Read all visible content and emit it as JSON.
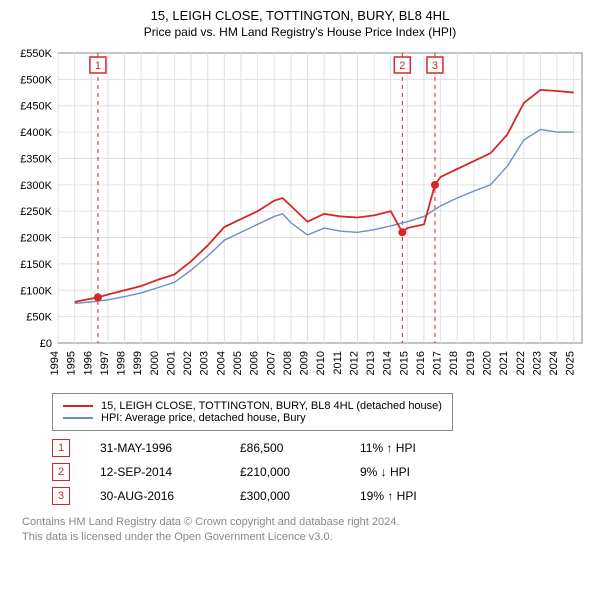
{
  "title": "15, LEIGH CLOSE, TOTTINGTON, BURY, BL8 4HL",
  "subtitle": "Price paid vs. HM Land Registry's House Price Index (HPI)",
  "chart": {
    "type": "line",
    "background_color": "#ffffff",
    "grid_color": "#e0e0e0",
    "marker_border": "#d62728",
    "marker_dash": "4,4",
    "marker_label_fontsize": 11,
    "xlim": [
      1994,
      2025.5
    ],
    "ylim": [
      0,
      550000
    ],
    "xtick_step": 1,
    "ytick_step": 50000,
    "ytick_labels": [
      "£0",
      "£50K",
      "£100K",
      "£150K",
      "£200K",
      "£250K",
      "£300K",
      "£350K",
      "£400K",
      "£450K",
      "£500K",
      "£550K"
    ],
    "xtick_labels": [
      "1994",
      "1995",
      "1996",
      "1997",
      "1998",
      "1999",
      "2000",
      "2001",
      "2002",
      "2003",
      "2004",
      "2005",
      "2006",
      "2007",
      "2008",
      "2009",
      "2010",
      "2011",
      "2012",
      "2013",
      "2014",
      "2015",
      "2016",
      "2017",
      "2018",
      "2019",
      "2020",
      "2021",
      "2022",
      "2023",
      "2024",
      "2025"
    ],
    "axis_fontsize": 11,
    "series": [
      {
        "name": "15, LEIGH CLOSE, TOTTINGTON, BURY, BL8 4HL (detached house)",
        "color": "#d62728",
        "width": 1.8,
        "data": [
          [
            1995,
            78000
          ],
          [
            1996.4,
            86500
          ],
          [
            1997,
            92000
          ],
          [
            1998,
            100000
          ],
          [
            1999,
            108000
          ],
          [
            2000,
            120000
          ],
          [
            2001,
            130000
          ],
          [
            2002,
            155000
          ],
          [
            2003,
            185000
          ],
          [
            2004,
            220000
          ],
          [
            2005,
            235000
          ],
          [
            2006,
            250000
          ],
          [
            2007,
            270000
          ],
          [
            2007.5,
            275000
          ],
          [
            2008,
            260000
          ],
          [
            2009,
            230000
          ],
          [
            2010,
            245000
          ],
          [
            2011,
            240000
          ],
          [
            2012,
            238000
          ],
          [
            2013,
            242000
          ],
          [
            2014,
            250000
          ],
          [
            2014.7,
            210000
          ],
          [
            2015,
            218000
          ],
          [
            2016,
            225000
          ],
          [
            2016.66,
            300000
          ],
          [
            2017,
            315000
          ],
          [
            2018,
            330000
          ],
          [
            2019,
            345000
          ],
          [
            2020,
            360000
          ],
          [
            2021,
            395000
          ],
          [
            2022,
            455000
          ],
          [
            2023,
            480000
          ],
          [
            2024,
            478000
          ],
          [
            2025,
            475000
          ]
        ]
      },
      {
        "name": "HPI: Average price, detached house, Bury",
        "color": "#6b8fc7",
        "width": 1.4,
        "data": [
          [
            1995,
            75000
          ],
          [
            1996,
            78000
          ],
          [
            1997,
            82000
          ],
          [
            1998,
            88000
          ],
          [
            1999,
            95000
          ],
          [
            2000,
            105000
          ],
          [
            2001,
            115000
          ],
          [
            2002,
            138000
          ],
          [
            2003,
            165000
          ],
          [
            2004,
            195000
          ],
          [
            2005,
            210000
          ],
          [
            2006,
            225000
          ],
          [
            2007,
            240000
          ],
          [
            2007.5,
            245000
          ],
          [
            2008,
            228000
          ],
          [
            2009,
            205000
          ],
          [
            2010,
            218000
          ],
          [
            2011,
            212000
          ],
          [
            2012,
            210000
          ],
          [
            2013,
            215000
          ],
          [
            2014,
            222000
          ],
          [
            2015,
            230000
          ],
          [
            2016,
            240000
          ],
          [
            2017,
            260000
          ],
          [
            2018,
            275000
          ],
          [
            2019,
            288000
          ],
          [
            2020,
            300000
          ],
          [
            2021,
            335000
          ],
          [
            2022,
            385000
          ],
          [
            2023,
            405000
          ],
          [
            2024,
            400000
          ],
          [
            2025,
            400000
          ]
        ]
      }
    ],
    "markers": [
      {
        "n": "1",
        "x": 1996.4,
        "y": 86500,
        "color": "#d62728"
      },
      {
        "n": "2",
        "x": 2014.7,
        "y": 210000,
        "color": "#d62728"
      },
      {
        "n": "3",
        "x": 2016.66,
        "y": 300000,
        "color": "#d62728"
      }
    ]
  },
  "legend": {
    "items": [
      {
        "label": "15, LEIGH CLOSE, TOTTINGTON, BURY, BL8 4HL (detached house)",
        "color": "#d62728"
      },
      {
        "label": "HPI: Average price, detached house, Bury",
        "color": "#6b8fc7"
      }
    ]
  },
  "sales": [
    {
      "n": "1",
      "date": "31-MAY-1996",
      "price": "£86,500",
      "pct": "11% ↑ HPI",
      "color": "#d62728"
    },
    {
      "n": "2",
      "date": "12-SEP-2014",
      "price": "£210,000",
      "pct": "9% ↓ HPI",
      "color": "#d62728"
    },
    {
      "n": "3",
      "date": "30-AUG-2016",
      "price": "£300,000",
      "pct": "19% ↑ HPI",
      "color": "#d62728"
    }
  ],
  "footnote": {
    "line1": "Contains HM Land Registry data © Crown copyright and database right 2024.",
    "line2": "This data is licensed under the Open Government Licence v3.0."
  }
}
